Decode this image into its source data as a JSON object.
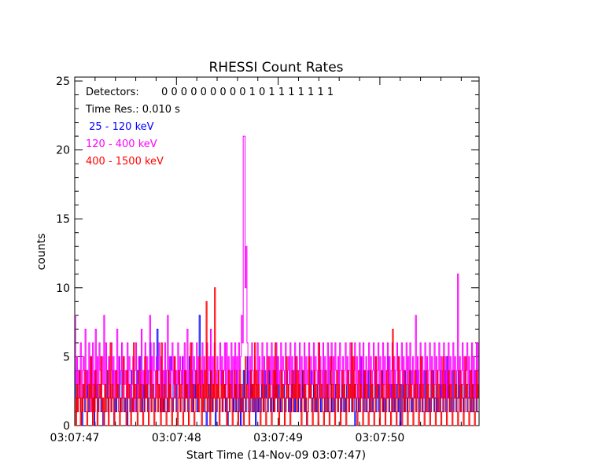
{
  "chart_data": {
    "type": "line",
    "title": "RHESSI Count Rates",
    "xlabel": "Start Time (14-Nov-09 03:07:47)",
    "ylabel": "counts",
    "ylim": [
      0,
      25
    ],
    "x_tick_labels": [
      "03:07:47",
      "03:07:48",
      "03:07:49",
      "03:07:50"
    ],
    "y_tick_labels": [
      "0",
      "5",
      "10",
      "15",
      "20",
      "25"
    ],
    "y_ticks": [
      0,
      5,
      10,
      15,
      20,
      25
    ],
    "annotations": {
      "detectors_label": "Detectors:",
      "detectors_value": "0 0 0 0 0 0 0 0 0 1 0 1 1 1 1 1 1 1",
      "time_res": "Time Res.: 0.010 s"
    },
    "colors": {
      "25-120": "#0000ff",
      "120-400": "#ff00ff",
      "400-1500": "#ff0000"
    },
    "series": [
      {
        "name": " 25 - 120 keV",
        "color": "#0000ff",
        "values": [
          4,
          2,
          1,
          3,
          4,
          2,
          1,
          0,
          2,
          3,
          1,
          2,
          4,
          1,
          3,
          2,
          5,
          1,
          2,
          0,
          4,
          2,
          3,
          1,
          2,
          3,
          1,
          2,
          0,
          1,
          3,
          2,
          4,
          1,
          2,
          3,
          1,
          2,
          4,
          0,
          2,
          1,
          3,
          2,
          5,
          1,
          2,
          4,
          3,
          1,
          2,
          1,
          0,
          2,
          3,
          1,
          4,
          2,
          1,
          3,
          2,
          1,
          4,
          3,
          2,
          5,
          1,
          2,
          3,
          1,
          3,
          2,
          4,
          1,
          2,
          6,
          1,
          3,
          2,
          1,
          2,
          4,
          7,
          3,
          2,
          1,
          5,
          2,
          3,
          1,
          4,
          2,
          1,
          3,
          2,
          5,
          2,
          1,
          4,
          3,
          2,
          1,
          3,
          4,
          2,
          1,
          3,
          5,
          2,
          1,
          4,
          2,
          3,
          1,
          5,
          2,
          4,
          1,
          3,
          2,
          4,
          2,
          1,
          3,
          8,
          2,
          4,
          1,
          3,
          2,
          1,
          0,
          2,
          3,
          1,
          4,
          2,
          1,
          3,
          2,
          0,
          1,
          3,
          2,
          1,
          2,
          4,
          1,
          2,
          3,
          1,
          2,
          0,
          1,
          3,
          2,
          4,
          1,
          2,
          3,
          1,
          4,
          2,
          1,
          3,
          0,
          2,
          1,
          4,
          2,
          1,
          3,
          5,
          2,
          1,
          4,
          2,
          3,
          1,
          2,
          0,
          3,
          1,
          4,
          2,
          1,
          3,
          2,
          1,
          4,
          2,
          3,
          1,
          2,
          4,
          1,
          2,
          3,
          1,
          4,
          2,
          5,
          1,
          3,
          2,
          1,
          4,
          2,
          3,
          1,
          2,
          4,
          3,
          1,
          2,
          1,
          3,
          2,
          4,
          1,
          5,
          2,
          1,
          3,
          2,
          1,
          4,
          2,
          3,
          1,
          2,
          0,
          1,
          3,
          2,
          4,
          1,
          2,
          3,
          1,
          2,
          1,
          3,
          4,
          2,
          1,
          3,
          2,
          4,
          1,
          2,
          3,
          1,
          2,
          4,
          3,
          1,
          2,
          1,
          2,
          3,
          2,
          1,
          4,
          2,
          1,
          3,
          2,
          1,
          2,
          1,
          3,
          2,
          1,
          2,
          4,
          1,
          2,
          3,
          0,
          1,
          2,
          3,
          1,
          2,
          5,
          2,
          1,
          4,
          2,
          1,
          3,
          2,
          4,
          1,
          3,
          2,
          1,
          2,
          4,
          1,
          2,
          3,
          1,
          3,
          2,
          4,
          1,
          2,
          1,
          3,
          2,
          5,
          1,
          2,
          3,
          1,
          2,
          4,
          1,
          2,
          3,
          1,
          2,
          0,
          1,
          3,
          2,
          1,
          4,
          2,
          1,
          3,
          2,
          4,
          1,
          2,
          1,
          3,
          2,
          1,
          4,
          2,
          1,
          3,
          2,
          1,
          2,
          4,
          1,
          3,
          2,
          1,
          2,
          1,
          3,
          2,
          4,
          1,
          2,
          3,
          1,
          2,
          1,
          4,
          2,
          3,
          1,
          2,
          4,
          1,
          5,
          2,
          3,
          1,
          2,
          4,
          1,
          2,
          3,
          1,
          2,
          4,
          2,
          1,
          3,
          2,
          1,
          4,
          2,
          3,
          1,
          2,
          4,
          1,
          2,
          3,
          1,
          2,
          4,
          1,
          3,
          2
        ]
      },
      {
        "name": "120 - 400 keV",
        "color": "#ff00ff",
        "values": [
          8,
          3,
          5,
          2,
          4,
          3,
          6,
          2,
          4,
          5,
          3,
          7,
          2,
          4,
          3,
          6,
          2,
          5,
          1,
          6,
          3,
          4,
          7,
          2,
          5,
          3,
          6,
          4,
          2,
          5,
          3,
          8,
          2,
          6,
          4,
          3,
          5,
          2,
          4,
          6,
          3,
          5,
          2,
          4,
          3,
          7,
          2,
          5,
          3,
          4,
          6,
          2,
          5,
          3,
          4,
          2,
          6,
          3,
          5,
          4,
          2,
          3,
          5,
          1,
          4,
          6,
          3,
          2,
          5,
          4,
          3,
          7,
          2,
          4,
          3,
          6,
          2,
          5,
          3,
          4,
          8,
          2,
          5,
          3,
          6,
          4,
          2,
          5,
          3,
          4,
          6,
          2,
          5,
          1,
          4,
          3,
          6,
          2,
          4,
          8,
          3,
          5,
          2,
          4,
          6,
          3,
          5,
          2,
          4,
          3,
          6,
          2,
          5,
          4,
          3,
          5,
          2,
          6,
          4,
          3,
          7,
          2,
          4,
          5,
          3,
          6,
          2,
          5,
          4,
          3,
          6,
          2,
          5,
          3,
          4,
          2,
          6,
          3,
          5,
          4,
          2,
          6,
          3,
          5,
          4,
          7,
          3,
          5,
          2,
          6,
          4,
          3,
          5,
          2,
          4,
          6,
          3,
          5,
          2,
          4,
          6,
          3,
          6,
          2,
          5,
          4,
          3,
          6,
          2,
          5,
          4,
          6,
          3,
          5,
          2,
          6,
          4,
          5,
          8,
          6,
          21,
          21,
          10,
          13,
          6,
          4,
          2,
          5,
          3,
          6,
          4,
          2,
          5,
          3,
          4,
          6,
          2,
          5,
          4,
          3,
          6,
          2,
          5,
          4,
          3,
          6,
          2,
          4,
          5,
          3,
          6,
          2,
          5,
          4,
          3,
          6,
          2,
          5,
          3,
          4,
          6,
          2,
          5,
          4,
          3,
          6,
          2,
          4,
          5,
          3,
          6,
          2,
          5,
          4,
          3,
          6,
          2,
          5,
          4,
          3,
          6,
          2,
          5,
          4,
          3,
          6,
          2,
          5,
          3,
          4,
          6,
          2,
          5,
          4,
          3,
          6,
          2,
          5,
          4,
          3,
          6,
          2,
          5,
          4,
          3,
          6,
          2,
          5,
          4,
          3,
          6,
          2,
          5,
          4,
          6,
          3,
          5,
          2,
          6,
          4,
          3,
          5,
          2,
          6,
          4,
          3,
          5,
          2,
          4,
          6,
          3,
          5,
          2,
          4,
          6,
          3,
          5,
          2,
          4,
          6,
          3,
          5,
          2,
          4,
          6,
          3,
          5,
          2,
          6,
          4,
          3,
          5,
          2,
          4,
          6,
          3,
          5,
          2,
          4,
          6,
          3,
          5,
          2,
          4,
          6,
          3,
          5,
          2,
          4,
          6,
          3,
          5,
          2,
          4,
          6,
          3,
          5,
          2,
          4,
          6,
          3,
          5,
          2,
          4,
          6,
          3,
          5,
          2,
          4,
          6,
          3,
          5,
          2,
          4,
          6,
          3,
          5,
          2,
          6,
          4,
          3,
          5,
          2,
          4,
          8,
          3,
          5,
          2,
          4,
          6,
          3,
          5,
          2,
          4,
          6,
          3,
          5,
          2,
          4,
          6,
          3,
          5,
          2,
          4,
          6,
          3,
          5,
          2,
          4,
          6,
          3,
          5,
          2,
          4,
          6,
          3,
          5,
          2,
          4,
          6,
          3,
          5,
          2,
          4,
          6,
          3,
          5,
          2,
          4,
          11,
          3,
          5,
          2,
          4,
          6,
          3,
          5,
          2,
          4,
          6,
          3,
          5,
          2,
          4,
          6,
          3,
          5,
          2,
          4,
          6,
          3,
          6
        ]
      },
      {
        "name": "400 - 1500 keV",
        "color": "#ff0000",
        "values": [
          2,
          0,
          3,
          1,
          2,
          4,
          0,
          2,
          1,
          3,
          2,
          4,
          1,
          0,
          2,
          3,
          1,
          5,
          2,
          0,
          3,
          1,
          4,
          2,
          0,
          1,
          3,
          2,
          5,
          1,
          2,
          0,
          3,
          1,
          2,
          4,
          0,
          2,
          6,
          1,
          3,
          2,
          0,
          1,
          4,
          2,
          3,
          1,
          0,
          2,
          1,
          3,
          5,
          2,
          1,
          0,
          4,
          2,
          3,
          1,
          0,
          2,
          1,
          6,
          2,
          3,
          1,
          0,
          2,
          4,
          1,
          3,
          2,
          0,
          1,
          5,
          2,
          3,
          1,
          0,
          2,
          4,
          1,
          2,
          3,
          0,
          1,
          2,
          4,
          1,
          3,
          2,
          0,
          6,
          1,
          2,
          3,
          1,
          0,
          2,
          4,
          1,
          3,
          2,
          0,
          1,
          2,
          5,
          3,
          1,
          0,
          2,
          4,
          1,
          3,
          2,
          0,
          1,
          4,
          2,
          3,
          1,
          0,
          2,
          6,
          1,
          3,
          2,
          0,
          1,
          4,
          2,
          3,
          1,
          5,
          2,
          0,
          3,
          1,
          4,
          2,
          9,
          1,
          3,
          2,
          0,
          4,
          1,
          3,
          2,
          10,
          1,
          3,
          2,
          4,
          0,
          2,
          3,
          1,
          4,
          2,
          3,
          1,
          0,
          2,
          4,
          1,
          3,
          2,
          0,
          1,
          4,
          2,
          3,
          1,
          0,
          2,
          4,
          1,
          3,
          2,
          0,
          1,
          5,
          2,
          3,
          1,
          0,
          2,
          4,
          1,
          3,
          2,
          6,
          1,
          4,
          2,
          3,
          1,
          0,
          2,
          4,
          1,
          3,
          2,
          0,
          1,
          5,
          2,
          3,
          1,
          0,
          2,
          4,
          1,
          6,
          2,
          3,
          1,
          0,
          2,
          4,
          1,
          3,
          2,
          0,
          1,
          5,
          2,
          3,
          1,
          0,
          2,
          4,
          1,
          3,
          2,
          5,
          1,
          4,
          2,
          3,
          1,
          0,
          2,
          4,
          1,
          3,
          2,
          0,
          1,
          5,
          2,
          3,
          1,
          0,
          2,
          4,
          1,
          3,
          2,
          0,
          6,
          4,
          2,
          3,
          1,
          0,
          2,
          4,
          1,
          3,
          2,
          0,
          1,
          5,
          2,
          3,
          1,
          0,
          2,
          4,
          1,
          3,
          2,
          0,
          1,
          4,
          2,
          3,
          1,
          0,
          2,
          4,
          1,
          3,
          2,
          6,
          1,
          5,
          2,
          3,
          1,
          0,
          2,
          4,
          1,
          3,
          2,
          0,
          1,
          4,
          2,
          3,
          1,
          0,
          2,
          4,
          1,
          3,
          2,
          0,
          1,
          5,
          2,
          3,
          1,
          0,
          2,
          4,
          1,
          3,
          2,
          0,
          1,
          4,
          2,
          3,
          1,
          0,
          2,
          7,
          1,
          3,
          2,
          0,
          1,
          5,
          2,
          3,
          1,
          0,
          2,
          4,
          1,
          3,
          2,
          0,
          1,
          4,
          2,
          3,
          1,
          0,
          2,
          4,
          1,
          3,
          2,
          0,
          1,
          5,
          2,
          3,
          1,
          0,
          2,
          4,
          1,
          3,
          2,
          0,
          1,
          4,
          2,
          3,
          1,
          0,
          2,
          4,
          1,
          3,
          2,
          0,
          1,
          5,
          2,
          3,
          1,
          0,
          2,
          4,
          1,
          3,
          2,
          0,
          1,
          4,
          2,
          3,
          1,
          0,
          2,
          4,
          1,
          3,
          2,
          0,
          1,
          5,
          2,
          3,
          1,
          0,
          2,
          4,
          1,
          3,
          2,
          0,
          1,
          4,
          2,
          3
        ]
      }
    ]
  }
}
